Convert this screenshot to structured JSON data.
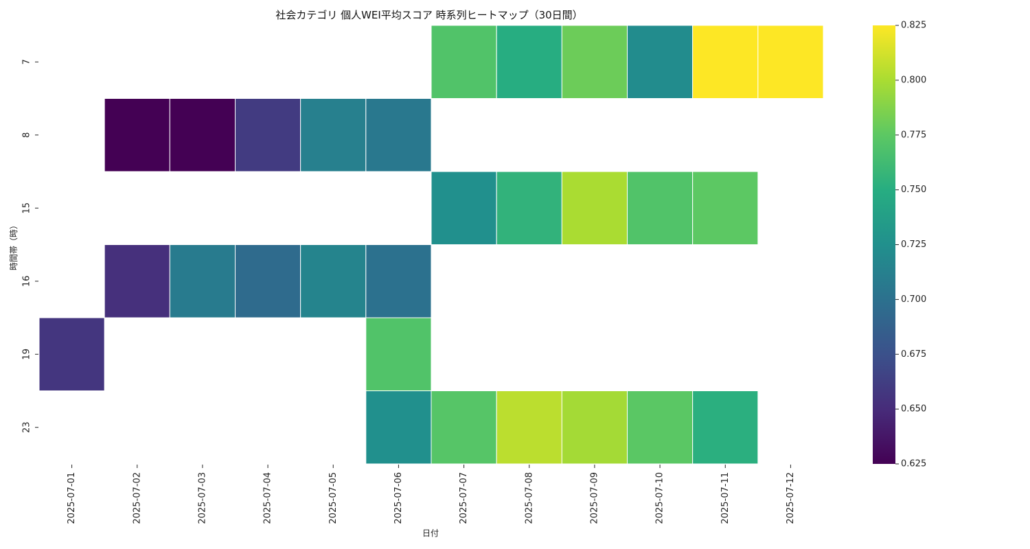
{
  "chart_data": {
    "type": "heatmap",
    "title": "社会カテゴリ 個人WEI平均スコア 時系列ヒートマップ（30日間）",
    "xlabel": "日付",
    "ylabel": "時間帯（時）",
    "x": [
      "2025-07-01",
      "2025-07-02",
      "2025-07-03",
      "2025-07-04",
      "2025-07-05",
      "2025-07-06",
      "2025-07-07",
      "2025-07-08",
      "2025-07-09",
      "2025-07-10",
      "2025-07-11",
      "2025-07-12"
    ],
    "y": [
      "7",
      "8",
      "15",
      "16",
      "19",
      "23"
    ],
    "values": [
      [
        null,
        null,
        null,
        null,
        null,
        null,
        0.77,
        0.75,
        0.78,
        0.722,
        0.825,
        0.825
      ],
      [
        null,
        0.625,
        0.625,
        0.66,
        0.712,
        0.706,
        null,
        null,
        null,
        null,
        null,
        null
      ],
      [
        null,
        null,
        null,
        null,
        null,
        null,
        0.725,
        0.755,
        0.8,
        0.77,
        0.775,
        null
      ],
      [
        null,
        0.653,
        0.708,
        0.695,
        0.715,
        0.7,
        null,
        null,
        null,
        null,
        null,
        null
      ],
      [
        0.657,
        null,
        null,
        null,
        null,
        0.77,
        null,
        null,
        null,
        null,
        null,
        null
      ],
      [
        null,
        null,
        null,
        null,
        null,
        0.725,
        0.772,
        0.805,
        0.798,
        0.774,
        0.752,
        null
      ]
    ],
    "colorbar": {
      "colormap": "viridis",
      "range": [
        0.625,
        0.825
      ],
      "ticks": [
        "0.625",
        "0.650",
        "0.675",
        "0.700",
        "0.725",
        "0.750",
        "0.775",
        "0.800",
        "0.825"
      ]
    }
  }
}
